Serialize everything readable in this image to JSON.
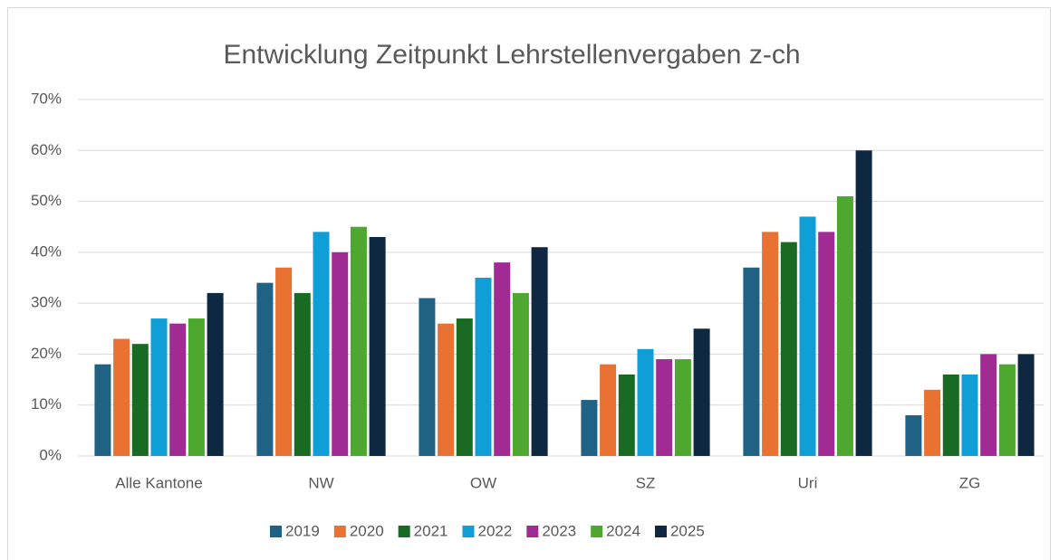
{
  "chart_data": {
    "type": "bar",
    "title": "Entwicklung Zeitpunkt Lehrstellenvergaben z-ch",
    "categories": [
      "Alle Kantone",
      "NW",
      "OW",
      "SZ",
      "Uri",
      "ZG"
    ],
    "series": [
      {
        "name": "2019",
        "color": "#1f6284",
        "values": [
          18,
          34,
          31,
          11,
          37,
          8
        ]
      },
      {
        "name": "2020",
        "color": "#e97132",
        "values": [
          23,
          37,
          26,
          18,
          44,
          13
        ]
      },
      {
        "name": "2021",
        "color": "#196b24",
        "values": [
          22,
          32,
          27,
          16,
          42,
          16
        ]
      },
      {
        "name": "2022",
        "color": "#0f9ed5",
        "values": [
          27,
          44,
          35,
          21,
          47,
          16
        ]
      },
      {
        "name": "2023",
        "color": "#a02b93",
        "values": [
          26,
          40,
          38,
          19,
          44,
          20
        ]
      },
      {
        "name": "2024",
        "color": "#4ea72e",
        "values": [
          27,
          45,
          32,
          19,
          51,
          18
        ]
      },
      {
        "name": "2025",
        "color": "#0e2841",
        "values": [
          32,
          43,
          41,
          25,
          60,
          20
        ]
      }
    ],
    "ylim": [
      0,
      70
    ],
    "yticks": [
      {
        "value": 0,
        "label": "0%"
      },
      {
        "value": 10,
        "label": "10%"
      },
      {
        "value": 20,
        "label": "20%"
      },
      {
        "value": 30,
        "label": "30%"
      },
      {
        "value": 40,
        "label": "40%"
      },
      {
        "value": 50,
        "label": "50%"
      },
      {
        "value": 60,
        "label": "60%"
      },
      {
        "value": 70,
        "label": "70%"
      }
    ],
    "grid": true,
    "legend": "bottom"
  }
}
